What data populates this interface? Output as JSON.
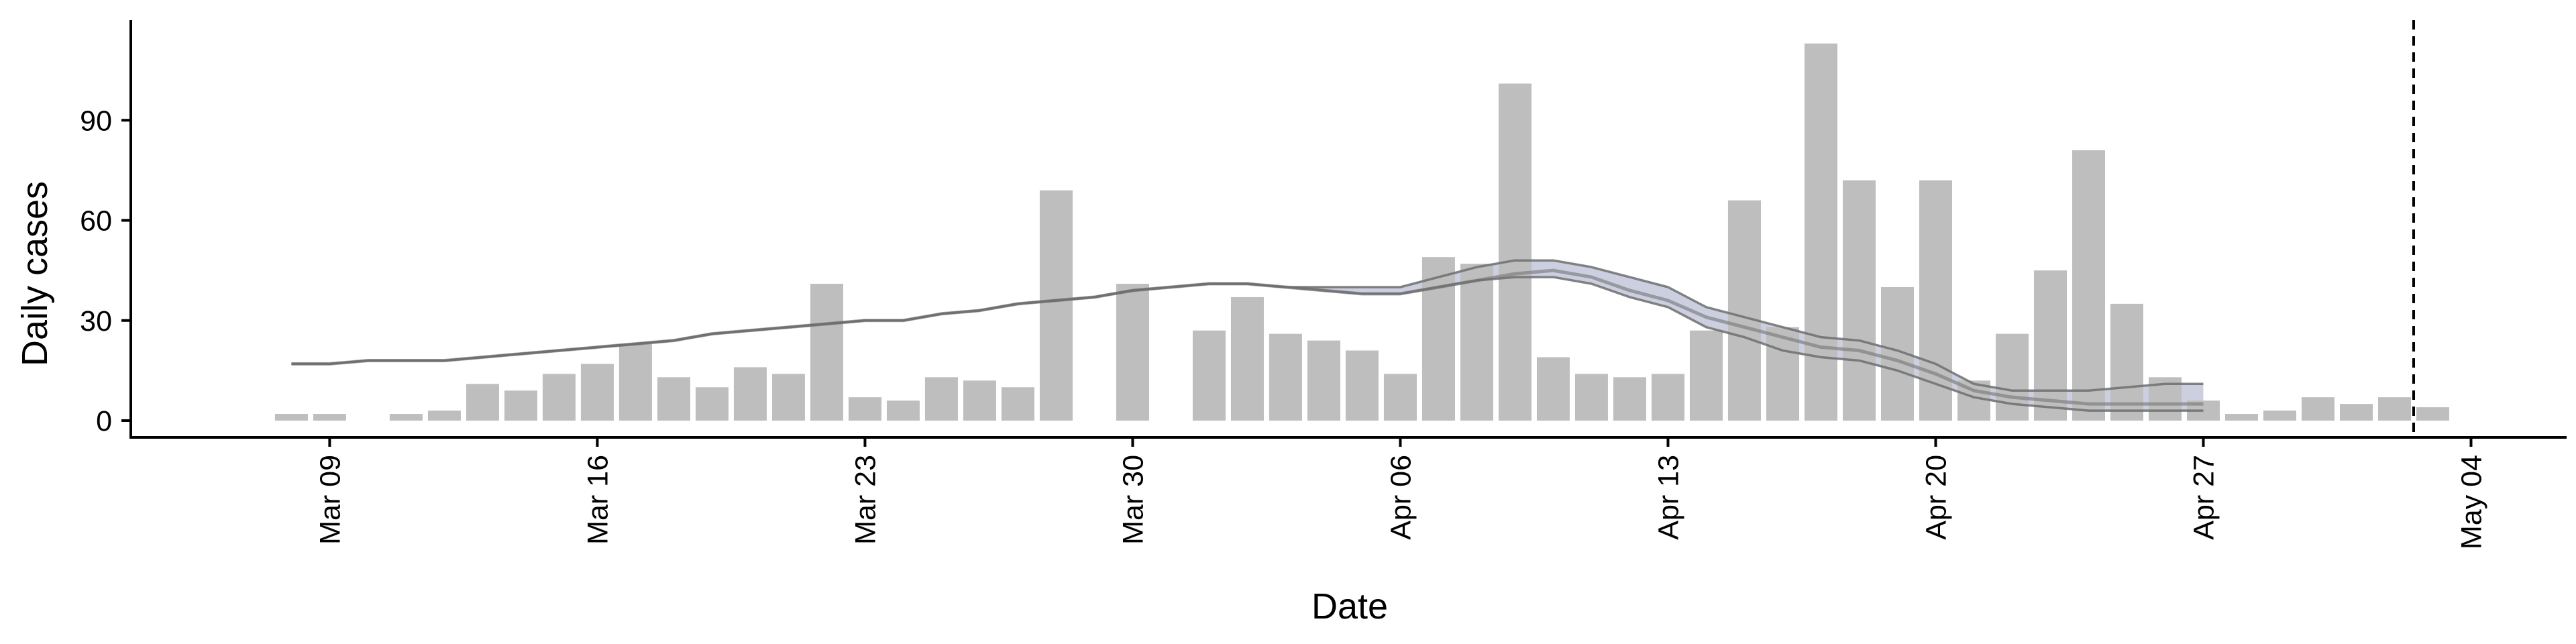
{
  "chart_data": {
    "type": "bar",
    "title": "",
    "xlabel": "Date",
    "ylabel": "Daily cases",
    "ylim": [
      0,
      120
    ],
    "yticks": [
      0,
      30,
      60,
      90
    ],
    "x_start": "Mar 08",
    "xlim_day": [
      -4.2,
      59.5
    ],
    "xticks": [
      {
        "label": "Mar 09",
        "day": 1
      },
      {
        "label": "Mar 16",
        "day": 8
      },
      {
        "label": "Mar 23",
        "day": 15
      },
      {
        "label": "Mar 30",
        "day": 22
      },
      {
        "label": "Apr 06",
        "day": 29
      },
      {
        "label": "Apr 13",
        "day": 36
      },
      {
        "label": "Apr 20",
        "day": 43
      },
      {
        "label": "Apr 27",
        "day": 50
      },
      {
        "label": "May 04",
        "day": 57
      }
    ],
    "daily_cases": [
      2,
      2,
      0,
      2,
      3,
      11,
      9,
      14,
      17,
      23,
      13,
      10,
      16,
      14,
      41,
      7,
      6,
      13,
      12,
      10,
      69,
      0,
      41,
      0,
      27,
      37,
      26,
      24,
      21,
      14,
      49,
      47,
      101,
      19,
      14,
      13,
      14,
      27,
      66,
      28,
      113,
      72,
      40,
      72,
      12,
      26,
      45,
      81,
      35,
      13,
      6,
      2,
      3,
      7,
      5,
      7,
      4
    ],
    "estimate_lines": [
      {
        "name": "lower",
        "start_day": 0,
        "values": [
          17,
          17,
          18,
          18,
          18,
          19,
          20,
          21,
          22,
          23,
          24,
          26,
          27,
          28,
          29,
          30,
          30,
          32,
          33,
          35,
          36,
          37,
          39,
          40,
          41,
          41,
          40,
          39,
          38,
          38,
          40,
          42,
          43,
          43,
          41,
          37,
          34,
          28,
          25,
          21,
          19,
          18,
          15,
          11,
          7,
          5,
          4,
          3,
          3,
          3,
          3
        ]
      },
      {
        "name": "median",
        "start_day": 0,
        "values": [
          17,
          17,
          18,
          18,
          18,
          19,
          20,
          21,
          22,
          23,
          24,
          26,
          27,
          28,
          29,
          30,
          30,
          32,
          33,
          35,
          36,
          37,
          39,
          40,
          41,
          41,
          40,
          39,
          38,
          38,
          40,
          42,
          44,
          45,
          43,
          39,
          36,
          31,
          28,
          25,
          22,
          21,
          18,
          14,
          9,
          7,
          6,
          5,
          5,
          5,
          5
        ]
      },
      {
        "name": "upper",
        "start_day": 0,
        "values": [
          17,
          17,
          18,
          18,
          18,
          19,
          20,
          21,
          22,
          23,
          24,
          26,
          27,
          28,
          29,
          30,
          30,
          32,
          33,
          35,
          36,
          37,
          39,
          40,
          41,
          41,
          40,
          40,
          40,
          40,
          43,
          46,
          48,
          48,
          46,
          43,
          40,
          34,
          31,
          28,
          25,
          24,
          21,
          17,
          11,
          9,
          9,
          9,
          10,
          11,
          11
        ]
      }
    ],
    "vline_day": 55.5,
    "colors": {
      "bars": "#bebebe",
      "lines": "#6e6e6e",
      "band": "#b9bfd6",
      "axis": "#000000"
    }
  }
}
